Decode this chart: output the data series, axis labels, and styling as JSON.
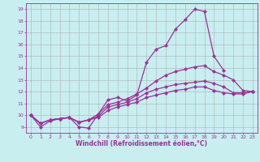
{
  "xlabel": "Windchill (Refroidissement éolien,°C)",
  "bg_color": "#c8eef0",
  "line_color": "#993399",
  "grid_color": "#b0b0b0",
  "ylim": [
    8.5,
    19.5
  ],
  "xlim": [
    -0.5,
    23.5
  ],
  "yticks": [
    9,
    10,
    11,
    12,
    13,
    14,
    15,
    16,
    17,
    18,
    19
  ],
  "xticks": [
    0,
    1,
    2,
    3,
    4,
    5,
    6,
    7,
    8,
    9,
    10,
    11,
    12,
    13,
    14,
    15,
    16,
    17,
    18,
    19,
    20,
    21,
    22,
    23
  ],
  "lines": [
    [
      10.0,
      9.0,
      9.5,
      9.7,
      9.8,
      9.0,
      8.9,
      10.1,
      11.3,
      11.5,
      11.2,
      11.7,
      14.5,
      15.6,
      15.9,
      17.3,
      18.1,
      19.0,
      18.8,
      15.0,
      13.8,
      null,
      null,
      null
    ],
    [
      10.0,
      9.3,
      9.6,
      9.7,
      9.8,
      9.4,
      9.6,
      10.1,
      10.9,
      11.1,
      11.4,
      11.8,
      12.3,
      12.9,
      13.4,
      13.7,
      13.9,
      14.1,
      14.2,
      13.7,
      13.4,
      13.0,
      12.1,
      12.0
    ],
    [
      10.0,
      9.3,
      9.6,
      9.7,
      9.8,
      9.4,
      9.6,
      9.9,
      10.7,
      10.9,
      11.1,
      11.4,
      11.9,
      12.2,
      12.4,
      12.6,
      12.7,
      12.8,
      12.9,
      12.7,
      12.4,
      11.9,
      11.9,
      12.0
    ],
    [
      10.0,
      9.3,
      9.6,
      9.7,
      9.8,
      9.4,
      9.6,
      9.8,
      10.4,
      10.7,
      10.9,
      11.1,
      11.5,
      11.7,
      11.9,
      12.1,
      12.2,
      12.4,
      12.4,
      12.1,
      11.9,
      11.8,
      11.8,
      12.0
    ]
  ],
  "marker": "D",
  "markersize": 2.2,
  "linewidth": 0.9,
  "tick_fontsize": 4.5,
  "xlabel_fontsize": 5.5
}
